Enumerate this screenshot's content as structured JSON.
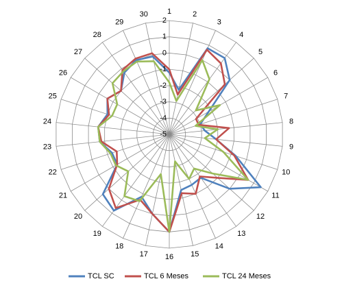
{
  "chart_data": {
    "type": "radar",
    "categories": [
      "1",
      "2",
      "3",
      "4",
      "5",
      "6",
      "7",
      "8",
      "9",
      "10",
      "11",
      "12",
      "13",
      "14",
      "15",
      "16",
      "17",
      "18",
      "19",
      "20",
      "21",
      "22",
      "23",
      "24",
      "25",
      "26",
      "27",
      "28",
      "29",
      "30"
    ],
    "r_range": [
      -5,
      2
    ],
    "r_ticks": [
      "-5",
      "-4",
      "-3",
      "-2",
      "-1",
      "0",
      "1",
      "2"
    ],
    "grid": true,
    "legend_position": "bottom",
    "series": [
      {
        "name": "TCL SC",
        "color": "#4F81BD",
        "values": [
          -1.2,
          -2.2,
          0.8,
          0.8,
          0.0,
          -2.2,
          -3.0,
          -2.8,
          -2.1,
          -0.7,
          1.5,
          0.0,
          -1.7,
          -1.6,
          -1.5,
          1.0,
          0.0,
          -0.8,
          0.8,
          0.5,
          -1.3,
          -1.3,
          -0.7,
          -0.6,
          -1.0,
          -0.6,
          -1.0,
          -0.3,
          0.0,
          -0.1
        ]
      },
      {
        "name": "TCL 6 Meses",
        "color": "#C0504D",
        "values": [
          -1.0,
          -2.5,
          0.7,
          0.4,
          -0.4,
          -3.1,
          -3.1,
          -1.3,
          -2.1,
          -0.8,
          0.6,
          -1.0,
          -1.8,
          -1.0,
          -1.3,
          1.0,
          0.0,
          -0.6,
          0.6,
          0.0,
          -1.3,
          -1.6,
          -0.8,
          -0.6,
          -1.1,
          -0.6,
          -1.0,
          -0.1,
          0.1,
          0.1
        ]
      },
      {
        "name": "TCL 24 Meses",
        "color": "#9BBB59",
        "values": [
          -1.8,
          -2.9,
          0.0,
          -0.8,
          -2.8,
          -1.4,
          -3.3,
          -2.0,
          -2.8,
          -1.5,
          0.6,
          -1.4,
          -2.4,
          -2.0,
          -3.3,
          1.0,
          -2.5,
          -0.5,
          -0.3,
          -1.6,
          -1.2,
          -1.2,
          -0.7,
          -0.6,
          -1.3,
          -1.3,
          -0.3,
          -0.2,
          -0.1,
          -0.4
        ]
      }
    ]
  }
}
